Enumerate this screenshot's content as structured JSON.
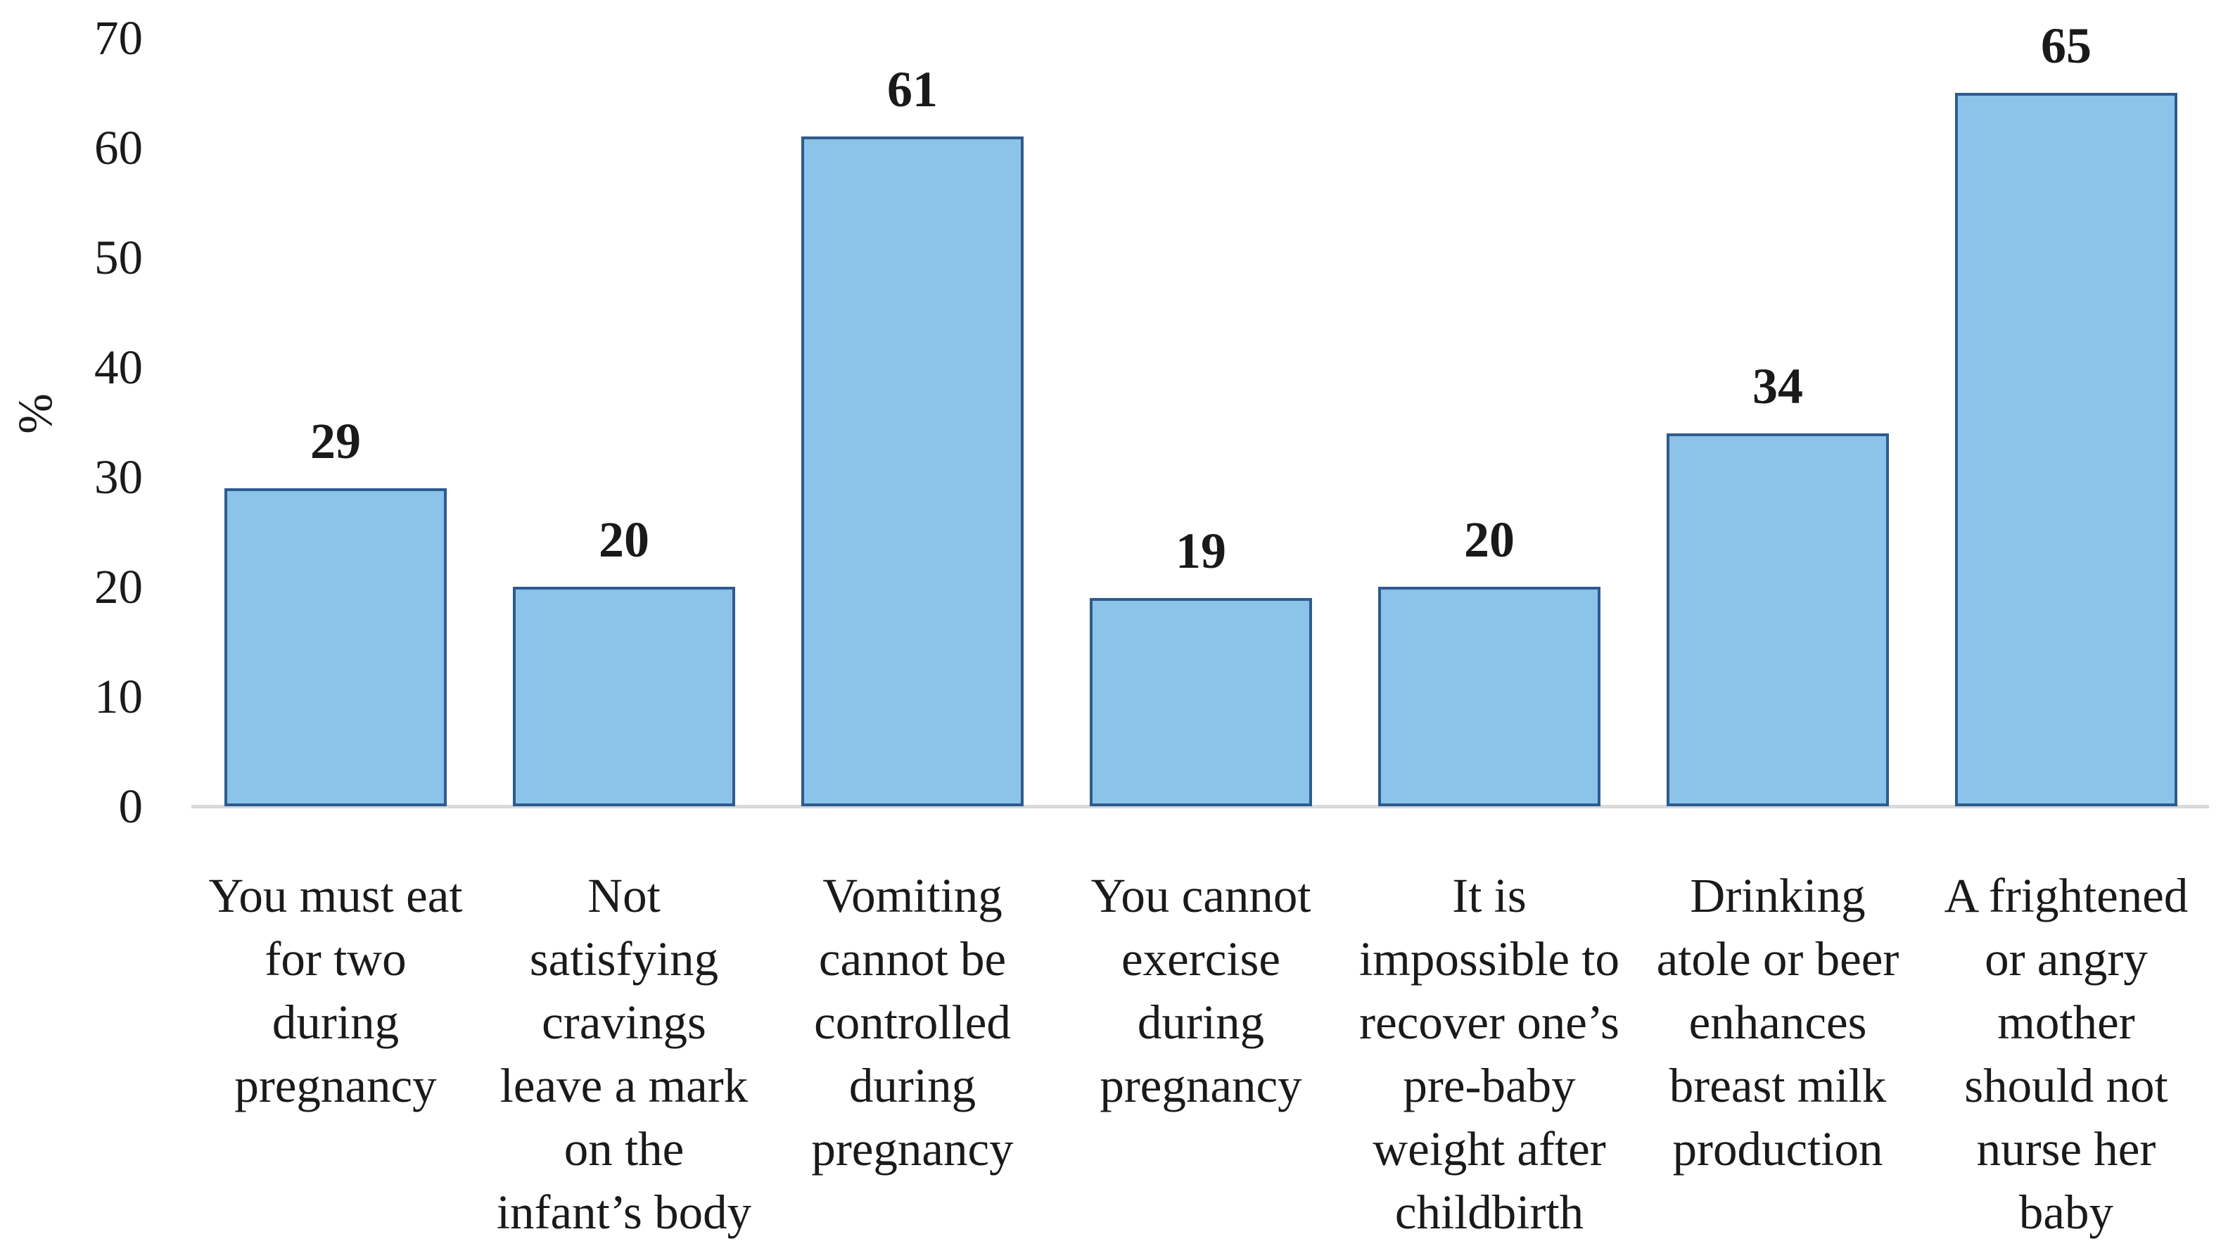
{
  "chart_data": {
    "type": "bar",
    "title": "",
    "xlabel": "",
    "ylabel": "%",
    "ylim": [
      0,
      70
    ],
    "yticks": [
      0,
      10,
      20,
      30,
      40,
      50,
      60,
      70
    ],
    "grid": false,
    "legend": false,
    "categories": [
      "You must eat for two during pregnancy",
      "Not satisfying cravings leave a mark on the infant’s body",
      "Vomiting cannot be controlled during pregnancy",
      "You cannot exercise during pregnancy",
      "It is impossible to recover one’s pre-baby weight after childbirth",
      "Drinking atole or beer enhances breast milk production",
      "A frightened or angry mother should not nurse her baby"
    ],
    "categories_wrapped": [
      [
        "You must eat",
        "for two",
        "during",
        "pregnancy"
      ],
      [
        "Not",
        "satisfying",
        "cravings",
        "leave a mark",
        "on the",
        "infant’s body"
      ],
      [
        "Vomiting",
        "cannot be",
        "controlled",
        "during",
        "pregnancy"
      ],
      [
        "You cannot",
        "exercise",
        "during",
        "pregnancy"
      ],
      [
        "It is",
        "impossible to",
        "recover one’s",
        "pre-baby",
        "weight after",
        "childbirth"
      ],
      [
        "Drinking",
        "atole or beer",
        "enhances",
        "breast milk",
        "production"
      ],
      [
        "A frightened",
        "or angry",
        "mother",
        "should not",
        "nurse her",
        "baby"
      ]
    ],
    "values": [
      29,
      20,
      61,
      19,
      20,
      34,
      65
    ],
    "colors": {
      "bar_fill": "#8CC3E8",
      "bar_border": "#2E5B8F",
      "axis_line": "#D9D9D9",
      "text": "#1A1A1A",
      "background": "#FFFFFF"
    }
  }
}
